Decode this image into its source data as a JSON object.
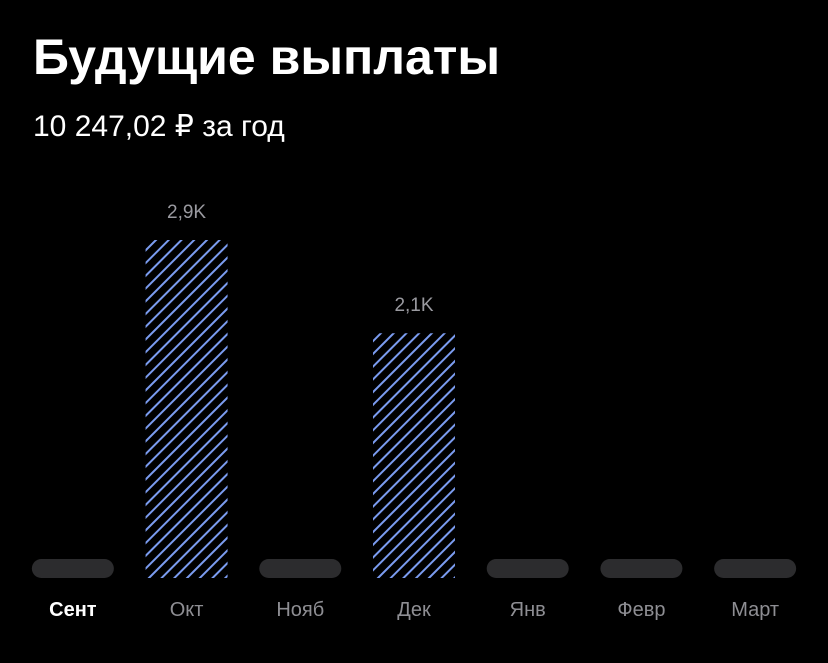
{
  "chart_data": {
    "type": "bar",
    "title": "Будущие выплаты",
    "subtitle": "10 247,02 ₽ за год",
    "categories": [
      "Сент",
      "Окт",
      "Нояб",
      "Дек",
      "Янв",
      "Февр",
      "Март"
    ],
    "values": [
      0,
      2900,
      0,
      2100,
      0,
      0,
      0
    ],
    "value_labels": [
      null,
      "2,9K",
      null,
      "2,1K",
      null,
      null,
      null
    ],
    "color": "#7b9cf0",
    "selected": 0
  }
}
